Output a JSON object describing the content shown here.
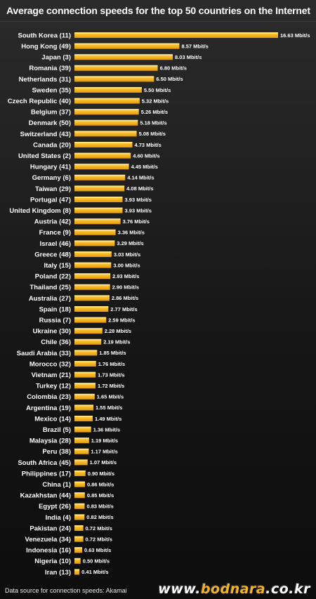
{
  "title": "Average connection speeds for the top 50 countries on the Internet",
  "source_text": "Data source for connection speeds: Akamai",
  "watermark": {
    "prefix": "www.",
    "accent": "bodnara",
    "suffix": ".co.kr"
  },
  "colors": {
    "background": "#1a1a1a",
    "bar_top": "#ffd24a",
    "bar_bottom": "#e39a0c",
    "text": "#ffffff"
  },
  "chart_data": {
    "type": "bar",
    "orientation": "horizontal",
    "title": "Average connection speeds for the top 50 countries on the Internet",
    "unit": "Mbit/s",
    "xlim": [
      0,
      16.63
    ],
    "grid": false,
    "categories": [
      "South Korea (11)",
      "Hong Kong (49)",
      "Japan (3)",
      "Romania (39)",
      "Netherlands (31)",
      "Sweden (35)",
      "Czech Republic (40)",
      "Belgium (37)",
      "Denmark (50)",
      "Switzerland (43)",
      "Canada (20)",
      "United States (2)",
      "Hungary (41)",
      "Germany (6)",
      "Taiwan (29)",
      "Portugal (47)",
      "United Kingdom (8)",
      "Austria (42)",
      "France (9)",
      "Israel (46)",
      "Greece (48)",
      "Italy (15)",
      "Poland (22)",
      "Thailand (25)",
      "Australia (27)",
      "Spain (18)",
      "Russia (7)",
      "Ukraine (30)",
      "Chile (36)",
      "Saudi Arabia (33)",
      "Morocco (32)",
      "Vietnam (21)",
      "Turkey (12)",
      "Colombia (23)",
      "Argentina (19)",
      "Mexico (14)",
      "Brazil (5)",
      "Malaysia (28)",
      "Peru (38)",
      "South Africa (45)",
      "Philippines (17)",
      "China (1)",
      "Kazakhstan (44)",
      "Egypt (26)",
      "India (4)",
      "Pakistan (24)",
      "Venezuela (34)",
      "Indonesia (16)",
      "Nigeria (10)",
      "Iran (13)"
    ],
    "values": [
      16.63,
      8.57,
      8.03,
      6.8,
      6.5,
      5.5,
      5.32,
      5.26,
      5.18,
      5.08,
      4.73,
      4.6,
      4.45,
      4.14,
      4.08,
      3.93,
      3.93,
      3.76,
      3.36,
      3.29,
      3.03,
      3.0,
      2.93,
      2.9,
      2.86,
      2.77,
      2.59,
      2.28,
      2.19,
      1.85,
      1.76,
      1.73,
      1.72,
      1.65,
      1.55,
      1.49,
      1.36,
      1.19,
      1.17,
      1.07,
      0.9,
      0.86,
      0.85,
      0.83,
      0.82,
      0.72,
      0.72,
      0.63,
      0.5,
      0.41
    ],
    "value_labels": [
      "16.63 Mbit/s",
      "8.57 Mbit/s",
      "8.03 Mbit/s",
      "6.80 Mbit/s",
      "6.50 Mbit/s",
      "5.50 Mbit/s",
      "5.32 Mbit/s",
      "5.26 Mbit/s",
      "5.18 Mbit/s",
      "5.08 Mbit/s",
      "4.73 Mbit/s",
      "4.60 Mbit/s",
      "4.45 Mbit/s",
      "4.14 Mbit/s",
      "4.08 Mbit/s",
      "3.93 Mbit/s",
      "3.93 Mbit/s",
      "3.76 Mbit/s",
      "3.36 Mbit/s",
      "3.29 Mbit/s",
      "3.03 Mbit/s",
      "3.00 Mbit/s",
      "2.93 Mbit/s",
      "2.90 Mbit/s",
      "2.86 Mbit/s",
      "2.77 Mbit/s",
      "2.59 Mbit/s",
      "2.28 Mbit/s",
      "2.19 Mbit/s",
      "1.85 Mbit/s",
      "1.76 Mbit/s",
      "1.73 Mbit/s",
      "1.72 Mbit/s",
      "1.65 Mbit/s",
      "1.55 Mbit/s",
      "1.49 Mbit/s",
      "1.36 Mbit/s",
      "1.19 Mbit/s",
      "1.17 Mbit/s",
      "1.07 Mbit/s",
      "0.90 Mbit/s",
      "0.86 Mbit/s",
      "0.85 Mbit/s",
      "0.83 Mbit/s",
      "0.82 Mbit/s",
      "0.72 Mbit/s",
      "0.72 Mbit/s",
      "0.63 Mbit/s",
      "0.50 Mbit/s",
      "0.41 Mbit/s"
    ]
  }
}
